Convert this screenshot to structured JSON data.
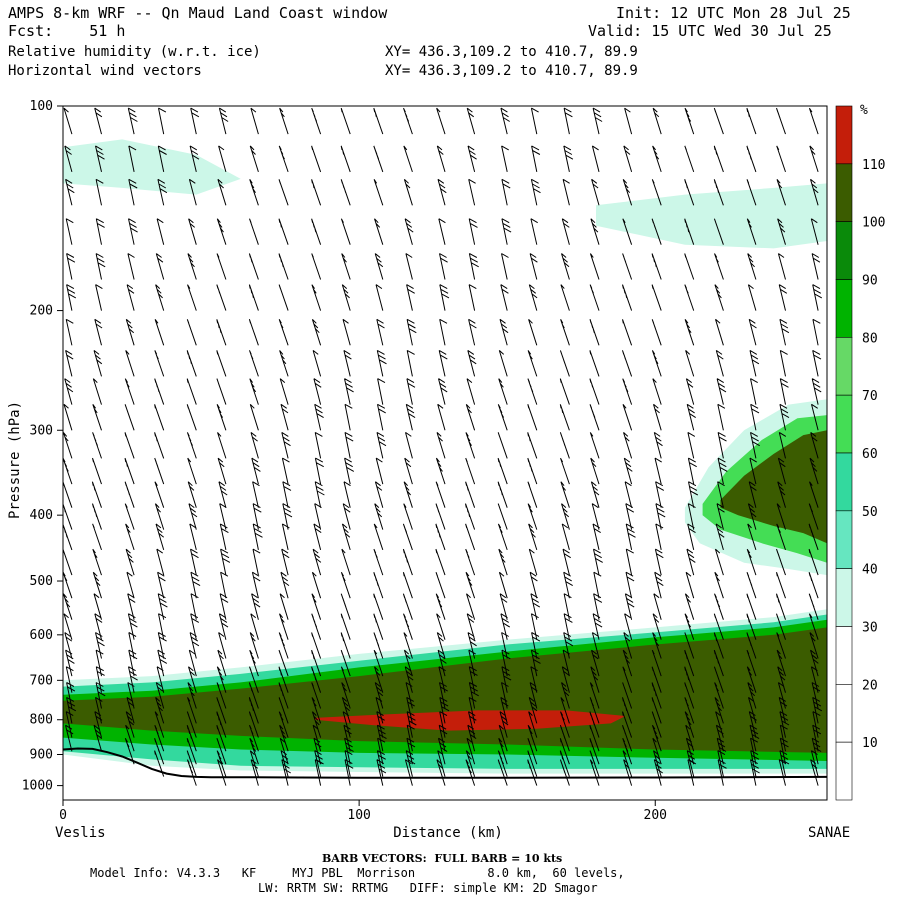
{
  "header": {
    "title": "AMPS 8-km WRF -- Qn Maud Land Coast window",
    "init": "Init: 12 UTC Mon 28 Jul 25",
    "fcst": "Fcst:    51 h",
    "valid": "Valid: 15 UTC Wed 30 Jul 25",
    "field1": "Relative humidity (w.r.t. ice)",
    "field1_xy": "XY= 436.3,109.2 to 410.7, 89.9",
    "field2": "Horizontal wind vectors",
    "field2_xy": "XY= 436.3,109.2 to 410.7, 89.9"
  },
  "footer": {
    "barb_note": "BARB VECTORS:  FULL BARB = 10 kts",
    "model_info_1": "Model Info: V4.3.3   KF     MYJ PBL  Morrison          8.0 km,  60 levels,",
    "model_info_2": "LW: RRTM SW: RRTMG   DIFF: simple KM: 2D Smagor"
  },
  "colors": {
    "rh_30": "#ccf7e8",
    "rh_40": "#66e6c0",
    "rh_50": "#33d99e",
    "rh_60": "#44dd55",
    "rh_70": "#66d966",
    "rh_80": "#00b300",
    "rh_90": "#0a8a0a",
    "rh_100": "#3b5c00",
    "rh_110": "#c41e0a"
  },
  "chart_data": {
    "type": "cross-section",
    "xlabel": "Distance (km)",
    "ylabel": "Pressure (hPa)",
    "xlim": [
      0,
      258
    ],
    "ylim": [
      100,
      1050
    ],
    "y_scale": "log",
    "x_ticks": [
      "0",
      "100",
      "200"
    ],
    "y_ticks": [
      "100",
      "200",
      "300",
      "400",
      "500",
      "600",
      "700",
      "800",
      "900",
      "1000"
    ],
    "left_endpoint": "Veslis",
    "right_endpoint": "SANAE",
    "colorbar": {
      "unit": "%",
      "levels": [
        "10",
        "20",
        "30",
        "40",
        "50",
        "60",
        "70",
        "80",
        "90",
        "100",
        "110"
      ]
    },
    "terrain": {
      "x": [
        0,
        5,
        10,
        15,
        20,
        25,
        30,
        35,
        40,
        45,
        50,
        60,
        80,
        100,
        150,
        200,
        258
      ],
      "p": [
        885,
        882,
        883,
        893,
        906,
        925,
        945,
        960,
        968,
        971,
        972,
        972,
        973,
        974,
        974,
        973,
        971
      ]
    },
    "rh_regions": [
      {
        "level": "30",
        "x": [
          0,
          30,
          60,
          100,
          150,
          200,
          240,
          258,
          258,
          200,
          150,
          100,
          60,
          30,
          0
        ],
        "p": [
          700,
          690,
          670,
          640,
          610,
          585,
          565,
          550,
          960,
          960,
          960,
          955,
          950,
          935,
          900
        ]
      },
      {
        "level": "50",
        "x": [
          0,
          30,
          60,
          100,
          150,
          200,
          240,
          258,
          258,
          200,
          150,
          100,
          60,
          30,
          0
        ],
        "p": [
          715,
          705,
          685,
          655,
          620,
          595,
          575,
          560,
          945,
          945,
          945,
          940,
          935,
          915,
          890
        ]
      },
      {
        "level": "80",
        "x": [
          0,
          30,
          60,
          100,
          150,
          200,
          240,
          258,
          258,
          200,
          150,
          100,
          60,
          30,
          0
        ],
        "p": [
          735,
          725,
          705,
          670,
          635,
          605,
          585,
          570,
          920,
          910,
          900,
          895,
          885,
          870,
          850
        ]
      },
      {
        "level": "100",
        "x": [
          0,
          30,
          60,
          100,
          150,
          200,
          240,
          258,
          258,
          200,
          150,
          100,
          60,
          30,
          0
        ],
        "p": [
          750,
          740,
          720,
          690,
          650,
          620,
          600,
          585,
          895,
          885,
          870,
          860,
          845,
          830,
          810
        ]
      },
      {
        "level": "110",
        "x": [
          85,
          110,
          140,
          170,
          190,
          185,
          160,
          130,
          105,
          85
        ],
        "p": [
          795,
          785,
          775,
          775,
          790,
          810,
          825,
          830,
          815,
          800
        ]
      },
      {
        "level": "30",
        "x": [
          210,
          218,
          230,
          245,
          258,
          258,
          245,
          230,
          215,
          210
        ],
        "p": [
          390,
          340,
          300,
          275,
          270,
          490,
          480,
          470,
          440,
          410
        ]
      },
      {
        "level": "60",
        "x": [
          216,
          224,
          236,
          248,
          258,
          258,
          248,
          236,
          222,
          216
        ],
        "p": [
          385,
          345,
          310,
          288,
          285,
          470,
          455,
          440,
          420,
          400
        ]
      },
      {
        "level": "100",
        "x": [
          222,
          230,
          240,
          250,
          258,
          258,
          250,
          240,
          228,
          222
        ],
        "p": [
          380,
          350,
          325,
          305,
          300,
          440,
          425,
          415,
          400,
          390
        ]
      },
      {
        "level": "30",
        "x": [
          0,
          20,
          45,
          60,
          45,
          20,
          0
        ],
        "p": [
          115,
          112,
          118,
          128,
          135,
          132,
          130
        ]
      },
      {
        "level": "30",
        "x": [
          180,
          210,
          240,
          258,
          258,
          240,
          210,
          180
        ],
        "p": [
          140,
          135,
          132,
          130,
          158,
          162,
          160,
          150
        ]
      }
    ],
    "wind_columns_x": [
      3,
      13,
      24,
      34,
      45,
      55,
      66,
      76,
      87,
      97,
      108,
      118,
      129,
      139,
      150,
      160,
      171,
      181,
      192,
      202,
      213,
      223,
      234,
      244,
      255
    ],
    "wind_levels_p": [
      110,
      125,
      140,
      160,
      180,
      200,
      225,
      250,
      275,
      300,
      330,
      360,
      390,
      420,
      450,
      490,
      530,
      570,
      610,
      650,
      690,
      730,
      770,
      810,
      850,
      890,
      930,
      970,
      1000
    ]
  }
}
